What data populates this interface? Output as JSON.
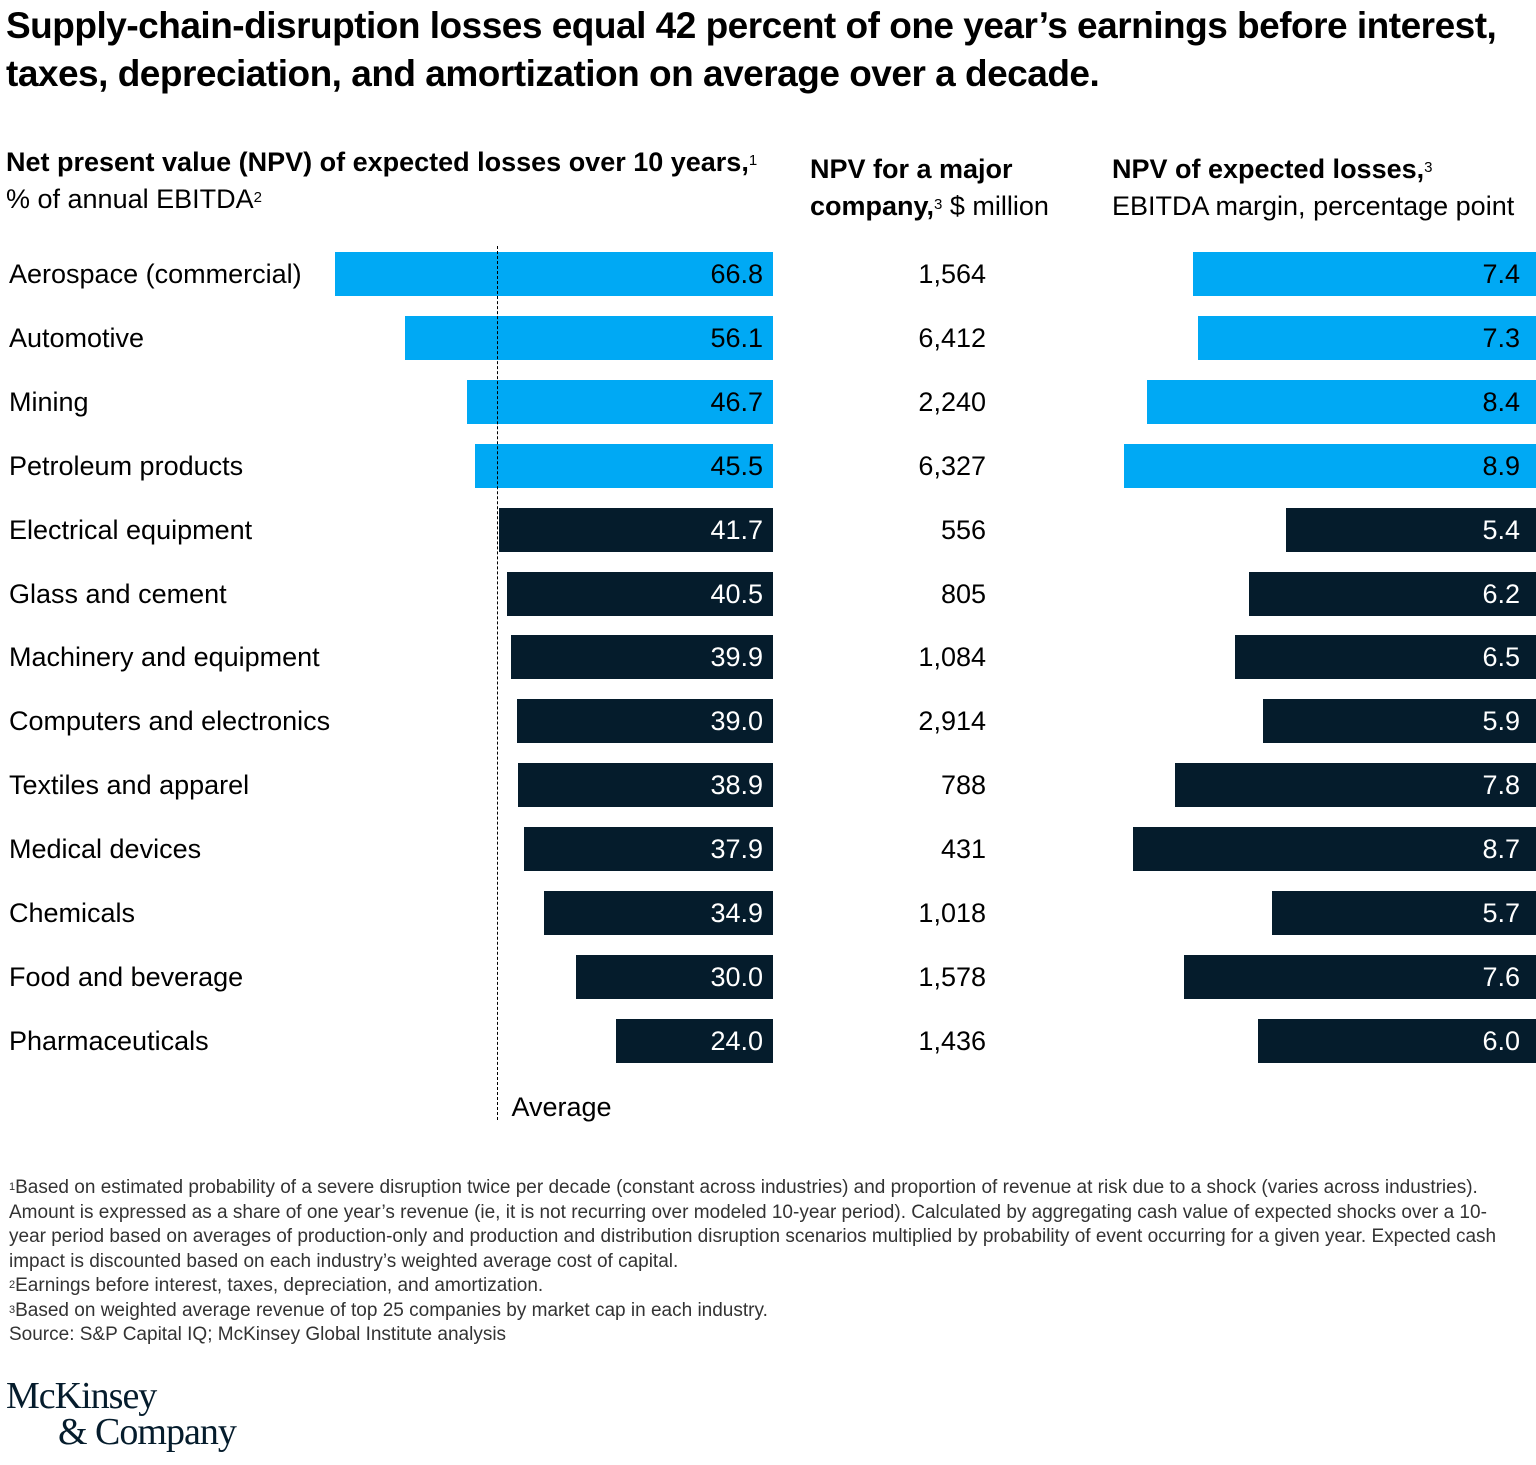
{
  "title": "Supply-chain-disruption losses equal 42 percent of one year’s earnings before interest, taxes, depreciation, and amortization on average over a decade.",
  "colors": {
    "highlight": "#00a9f4",
    "default": "#051c2c",
    "text_on_highlight": "#000000",
    "text_on_default": "#ffffff"
  },
  "columns": {
    "npv_pct": {
      "bold": "Net present value (NPV) of expected losses over 10 years,",
      "sup1": "1",
      "regular": " % of annual EBITDA",
      "sup2": "2"
    },
    "npv_usd": {
      "bold": "NPV for a major company,",
      "sup": "3",
      "regular": " $ million"
    },
    "npv_margin": {
      "bold": "NPV of expected losses,",
      "sup": "3",
      "regular": "EBITDA margin, percentage point"
    }
  },
  "average_label": "Average",
  "chart_data": [
    {
      "type": "bar",
      "orientation": "horizontal",
      "title": "Net present value (NPV) of expected losses over 10 years, % of annual EBITDA",
      "categories": [
        "Aerospace (commercial)",
        "Automotive",
        "Mining",
        "Petroleum products",
        "Electrical equipment",
        "Glass and cement",
        "Machinery and equipment",
        "Computers and electronics",
        "Textiles and apparel",
        "Medical devices",
        "Chemicals",
        "Food and beverage",
        "Pharmaceuticals"
      ],
      "values": [
        66.8,
        56.1,
        46.7,
        45.5,
        41.7,
        40.5,
        39.9,
        39.0,
        38.9,
        37.9,
        34.9,
        30.0,
        24.0
      ],
      "labels": [
        "66.8",
        "56.1",
        "46.7",
        "45.5",
        "41.7",
        "40.5",
        "39.9",
        "39.0",
        "38.9",
        "37.9",
        "34.9",
        "30.0",
        "24.0"
      ],
      "highlighted": [
        true,
        true,
        true,
        true,
        false,
        false,
        false,
        false,
        false,
        false,
        false,
        false,
        false
      ],
      "reference_line": {
        "label": "Average",
        "value": 42
      },
      "xlim": [
        0,
        70
      ]
    },
    {
      "type": "table",
      "title": "NPV for a major company, $ million",
      "categories": [
        "Aerospace (commercial)",
        "Automotive",
        "Mining",
        "Petroleum products",
        "Electrical equipment",
        "Glass and cement",
        "Machinery and equipment",
        "Computers and electronics",
        "Textiles and apparel",
        "Medical devices",
        "Chemicals",
        "Food and beverage",
        "Pharmaceuticals"
      ],
      "values": [
        1564,
        6412,
        2240,
        6327,
        556,
        805,
        1084,
        2914,
        788,
        431,
        1018,
        1578,
        1436
      ],
      "labels": [
        "1,564",
        "6,412",
        "2,240",
        "6,327",
        "556",
        "805",
        "1,084",
        "2,914",
        "788",
        "431",
        "1,018",
        "1,578",
        "1,436"
      ]
    },
    {
      "type": "bar",
      "orientation": "horizontal",
      "title": "NPV of expected losses, EBITDA margin, percentage point",
      "categories": [
        "Aerospace (commercial)",
        "Automotive",
        "Mining",
        "Petroleum products",
        "Electrical equipment",
        "Glass and cement",
        "Machinery and equipment",
        "Computers and electronics",
        "Textiles and apparel",
        "Medical devices",
        "Chemicals",
        "Food and beverage",
        "Pharmaceuticals"
      ],
      "values": [
        7.4,
        7.3,
        8.4,
        8.9,
        5.4,
        6.2,
        6.5,
        5.9,
        7.8,
        8.7,
        5.7,
        7.6,
        6.0
      ],
      "labels": [
        "7.4",
        "7.3",
        "8.4",
        "8.9",
        "5.4",
        "6.2",
        "6.5",
        "5.9",
        "7.8",
        "8.7",
        "5.7",
        "7.6",
        "6.0"
      ],
      "highlighted": [
        true,
        true,
        true,
        true,
        false,
        false,
        false,
        false,
        false,
        false,
        false,
        false,
        false
      ],
      "xlim": [
        0,
        9
      ]
    }
  ],
  "footnotes": [
    {
      "sup": "1",
      "text": "Based on estimated probability of a severe disruption twice per decade (constant across industries) and proportion of revenue at risk due to a shock (varies across industries). Amount is expressed as a share of one year’s revenue (ie, it is not recurring over modeled 10-year period). Calculated by aggregating cash value of expected shocks over a 10-year period based on averages of production-only and production and distribution disruption scenarios multiplied by probability of event occurring for a given year. Expected cash impact is discounted based on each industry’s weighted average cost of capital."
    },
    {
      "sup": "2",
      "text": "Earnings before interest, taxes, depreciation, and amortization."
    },
    {
      "sup": "3",
      "text": "Based on weighted average revenue of top 25 companies by market cap in each industry."
    }
  ],
  "source": "Source: S&P Capital IQ; McKinsey Global Institute analysis",
  "logo": {
    "line1": "McKinsey",
    "line2": "& Company"
  }
}
